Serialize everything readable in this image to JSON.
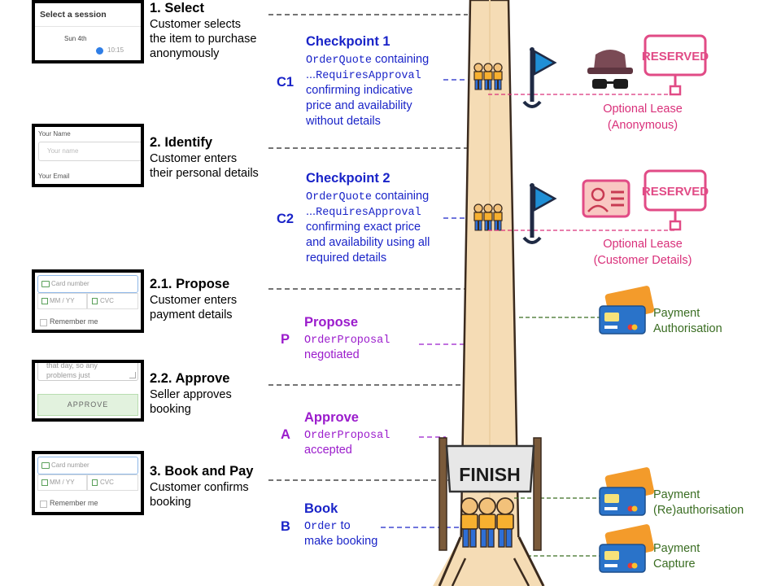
{
  "steps": [
    {
      "title": "1. Select",
      "desc": "Customer selects\nthe item to purchase\nanonymously"
    },
    {
      "title": "2. Identify",
      "desc": "Customer enters\ntheir personal details"
    },
    {
      "title": "2.1. Propose",
      "desc": "Customer enters\npayment details"
    },
    {
      "title": "2.2. Approve",
      "desc": "Seller approves\nbooking"
    },
    {
      "title": "3. Book and Pay",
      "desc": "Customer confirms\nbooking"
    }
  ],
  "thumbs": {
    "select": {
      "heading": "Select a session",
      "date": "Sun 4th",
      "time": "10:15"
    },
    "identify": {
      "name_label": "Your Name",
      "name_placeholder": "Your name",
      "email_label": "Your Email"
    },
    "propose": {
      "card_placeholder": "Card number",
      "expiry_placeholder": "MM / YY",
      "cvc_placeholder": "CVC",
      "remember": "Remember me"
    },
    "approve": {
      "text_line1": "that day, so any",
      "text_line2": "problems just",
      "button": "APPROVE"
    },
    "book": {
      "card_placeholder": "Card number",
      "expiry_placeholder": "MM / YY",
      "cvc_placeholder": "CVC",
      "remember": "Remember me"
    }
  },
  "checkpoints": [
    {
      "letter": "C1",
      "title": "Checkpoint 1",
      "mono1": "OrderQuote",
      "text1": " containing",
      "prefix2": "...",
      "mono2": "RequiresApproval",
      "lines": [
        "confirming indicative",
        "price and availability",
        "without details"
      ]
    },
    {
      "letter": "C2",
      "title": "Checkpoint 2",
      "mono1": "OrderQuote",
      "text1": " containing",
      "prefix2": "...",
      "mono2": "RequiresApproval",
      "lines": [
        "confirming exact price",
        "and availability using all",
        "required details"
      ]
    },
    {
      "letter": "P",
      "title": "Propose",
      "mono1": "OrderProposal",
      "lines": [
        "negotiated"
      ]
    },
    {
      "letter": "A",
      "title": "Approve",
      "mono1": "OrderProposal",
      "lines": [
        "accepted"
      ]
    },
    {
      "letter": "B",
      "title": "Book",
      "mono1": "Order",
      "text1": " to",
      "lines": [
        "make booking"
      ]
    }
  ],
  "leases": [
    {
      "line1": "Optional Lease",
      "line2": "(Anonymous)",
      "sign": "RESERVED"
    },
    {
      "line1": "Optional Lease",
      "line2": "(Customer Details)",
      "sign": "RESERVED"
    }
  ],
  "payments": [
    {
      "line1": "Payment",
      "line2": "Authorisation"
    },
    {
      "line1": "Payment",
      "line2": "(Re)authorisation"
    },
    {
      "line1": "Payment",
      "line2": "Capture"
    }
  ],
  "finish_banner": "FINISH",
  "colors": {
    "blue": "#1a24c8",
    "purple": "#9b1ccc",
    "pink": "#d9307a",
    "green": "#3a6d22",
    "road": "#f5dcb5",
    "flag": "#1f8fd6",
    "card_orange": "#f39b2b",
    "card_blue": "#2a73c9",
    "runner_shirt": "#f7b030",
    "runner_pants": "#2e6fd6"
  },
  "icons": [
    "spy-icon",
    "flag-icon",
    "id-card-icon",
    "reserved-sign-icon",
    "credit-card-icon",
    "runners-icon",
    "finish-banner-icon"
  ]
}
